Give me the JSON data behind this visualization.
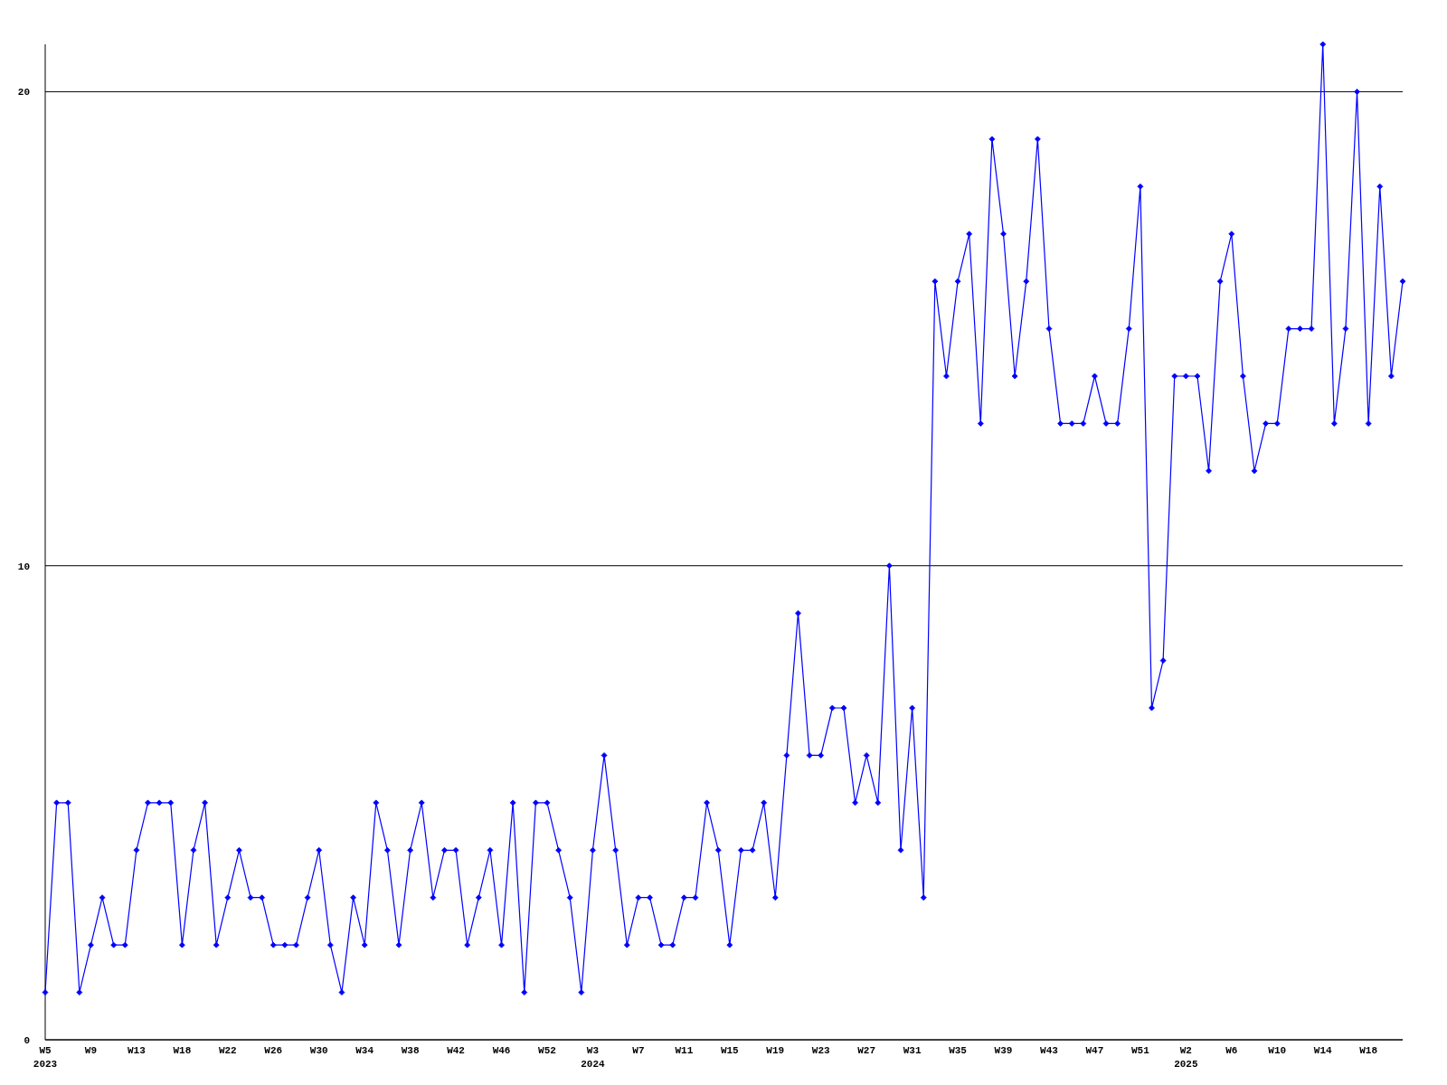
{
  "chart_data": {
    "type": "line",
    "categories": [
      "W5\n2023",
      null,
      null,
      null,
      "W9",
      null,
      null,
      null,
      "W13",
      null,
      null,
      null,
      "W18",
      null,
      null,
      null,
      "W22",
      null,
      null,
      null,
      "W26",
      null,
      null,
      null,
      "W30",
      null,
      null,
      null,
      "W34",
      null,
      null,
      null,
      "W38",
      null,
      null,
      null,
      "W42",
      null,
      null,
      null,
      "W46",
      null,
      null,
      null,
      "W52",
      null,
      null,
      null,
      "W3\n2024",
      null,
      null,
      null,
      "W7",
      null,
      null,
      null,
      "W11",
      null,
      null,
      null,
      "W15",
      null,
      null,
      null,
      "W19",
      null,
      null,
      null,
      "W23",
      null,
      null,
      null,
      "W27",
      null,
      null,
      null,
      "W31",
      null,
      null,
      null,
      "W35",
      null,
      null,
      null,
      "W39",
      null,
      null,
      null,
      "W43",
      null,
      null,
      null,
      "W47",
      null,
      null,
      null,
      "W51",
      null,
      null,
      null,
      "W2\n2025",
      null,
      null,
      null,
      "W6",
      null,
      null,
      null,
      "W10",
      null,
      null,
      null,
      "W14",
      null,
      null,
      null,
      "W18",
      null,
      null,
      null
    ],
    "series": [
      {
        "color": "#0000ff",
        "values": [
          1,
          5,
          5,
          1,
          2,
          3,
          2,
          2,
          4,
          5,
          5,
          5,
          2,
          4,
          5,
          2,
          3,
          4,
          3,
          3,
          2,
          2,
          2,
          3,
          4,
          2,
          1,
          3,
          2,
          5,
          4,
          2,
          4,
          5,
          3,
          4,
          4,
          2,
          3,
          4,
          2,
          5,
          1,
          5,
          5,
          4,
          3,
          1,
          4,
          6,
          4,
          2,
          3,
          3,
          2,
          2,
          3,
          3,
          5,
          4,
          2,
          4,
          4,
          5,
          3,
          6,
          9,
          6,
          6,
          7,
          7,
          5,
          6,
          5,
          10,
          4,
          7,
          3,
          16,
          14,
          16,
          17,
          13,
          19,
          17,
          14,
          16,
          19,
          15,
          13,
          13,
          13,
          14,
          13,
          13,
          15,
          18,
          7,
          8,
          14,
          14,
          14,
          12,
          16,
          17,
          14,
          12,
          13,
          13,
          15,
          15,
          15,
          21,
          13,
          15,
          20,
          13,
          18,
          14,
          16
        ]
      }
    ],
    "ylim": [
      0,
      21
    ],
    "yticks": [
      0,
      10,
      20
    ],
    "grid": "y",
    "marker": "diamond",
    "line_style": "solid"
  }
}
